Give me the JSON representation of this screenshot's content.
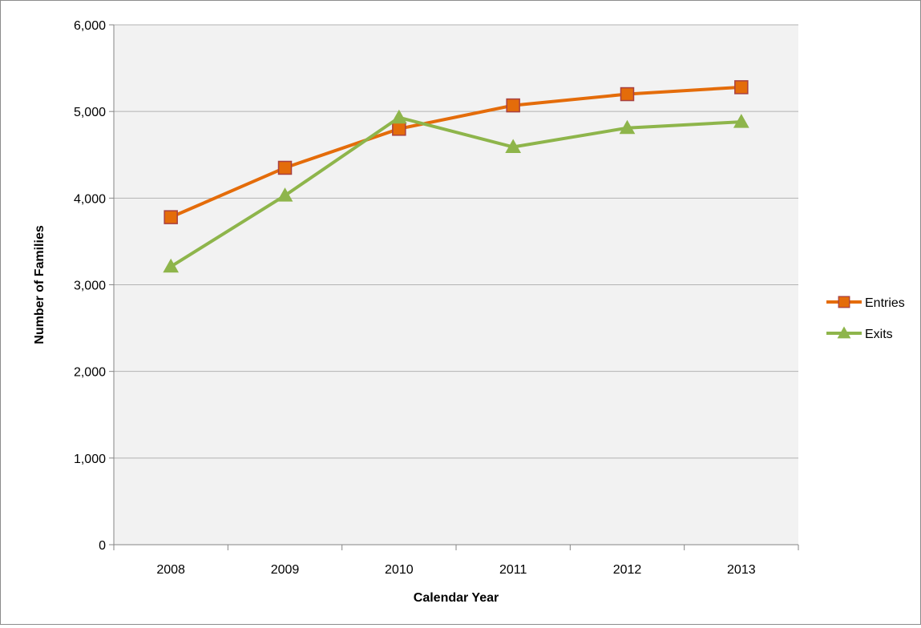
{
  "chart_data": {
    "type": "line",
    "title": "",
    "xlabel": "Calendar Year",
    "ylabel": "Number of Families",
    "categories": [
      "2008",
      "2009",
      "2010",
      "2011",
      "2012",
      "2013"
    ],
    "ylim": [
      0,
      6000
    ],
    "yticks": [
      0,
      1000,
      2000,
      3000,
      4000,
      5000,
      6000
    ],
    "ytick_labels": [
      "0",
      "1,000",
      "2,000",
      "3,000",
      "4,000",
      "5,000",
      "6,000"
    ],
    "grid": true,
    "legend_position": "right",
    "plot_background": "#f2f2f2",
    "gridline_color": "#b3b3b3",
    "series": [
      {
        "name": "Entries",
        "color": "#e46c0a",
        "marker": "square",
        "marker_edge_color": "#a84040",
        "values": [
          3780,
          4350,
          4800,
          5070,
          5200,
          5280
        ]
      },
      {
        "name": "Exits",
        "color": "#8eb54b",
        "marker": "triangle",
        "marker_edge_color": "#8eb54b",
        "values": [
          3210,
          4030,
          4930,
          4590,
          4810,
          4880
        ]
      }
    ]
  }
}
